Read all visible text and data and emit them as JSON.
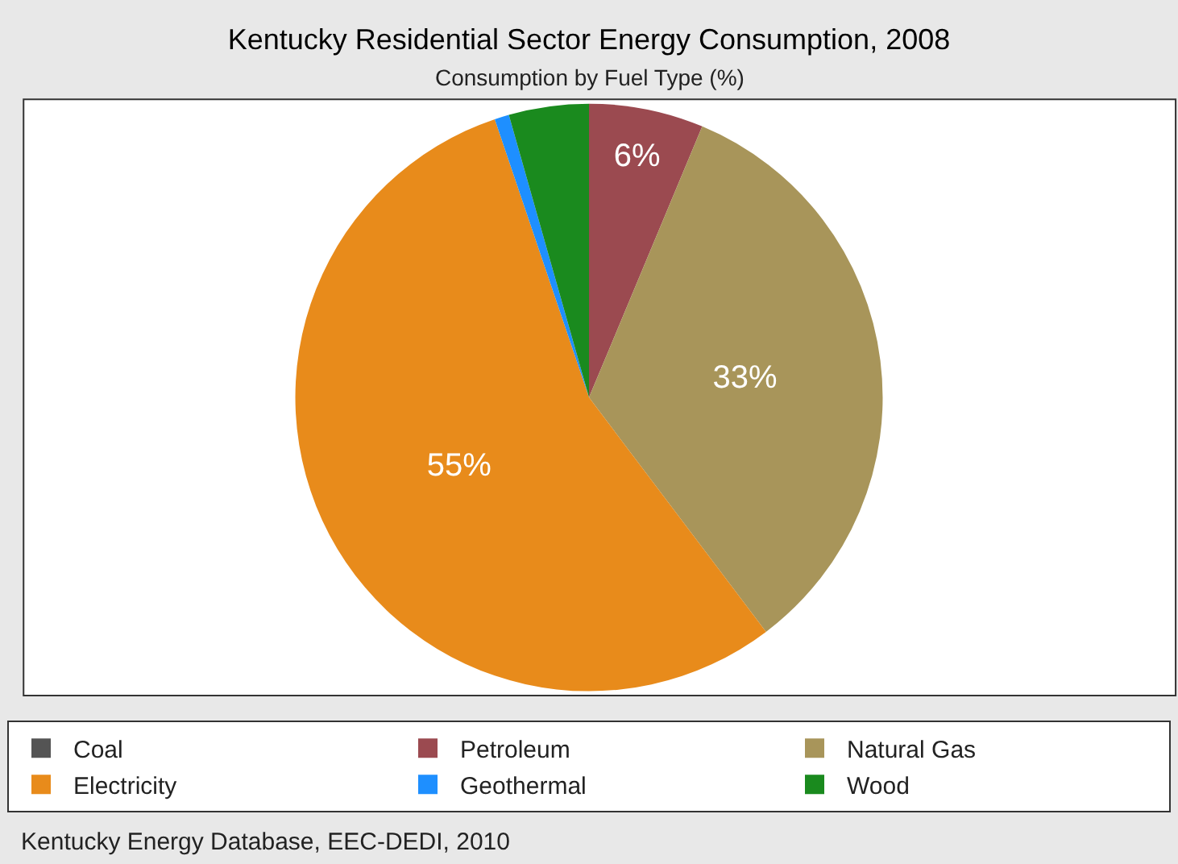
{
  "chart_data": {
    "type": "pie",
    "title": "Kentucky Residential Sector Energy Consumption, 2008",
    "subtitle": "Consumption by Fuel Type (%)",
    "categories": [
      "Coal",
      "Petroleum",
      "Natural Gas",
      "Electricity",
      "Geothermal",
      "Wood"
    ],
    "values": [
      0,
      6.3,
      33.4,
      55.1,
      0.8,
      4.4
    ],
    "colors": [
      "#545454",
      "#9b4a50",
      "#a8955a",
      "#e88b1b",
      "#1e8fff",
      "#1a8a1e"
    ],
    "value_labels": [
      null,
      "6%",
      "33%",
      "55%",
      null,
      null
    ],
    "legend": "bottom",
    "annotations": [
      "Kentucky Energy Database, EEC-DEDI, 2010"
    ]
  }
}
